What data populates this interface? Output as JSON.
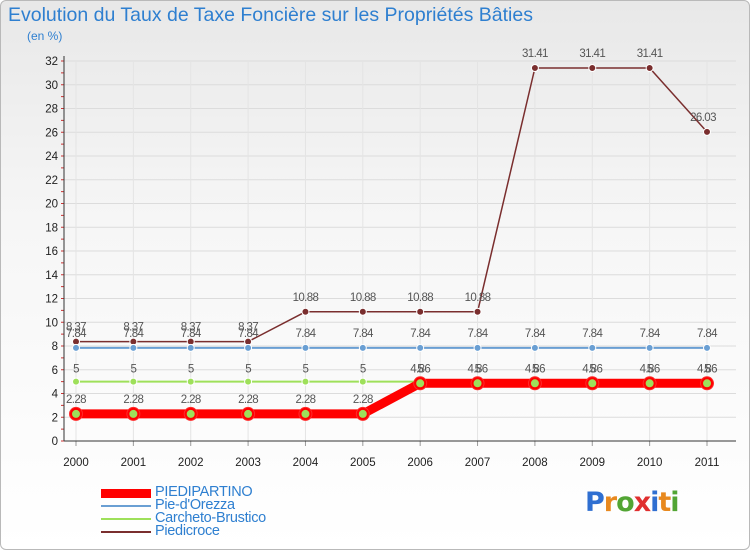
{
  "title": "Evolution du Taux de Taxe Foncière sur les Propriétés Bâties",
  "subtitle": "(en %)",
  "brand": {
    "letters": [
      "P",
      "r",
      "o",
      "x",
      "i",
      "t",
      "i"
    ],
    "colors": [
      "#2f6fd1",
      "#e8891f",
      "#52a534",
      "#e02f2f",
      "#2f6fd1",
      "#e8891f",
      "#52a534"
    ]
  },
  "chart_data": {
    "type": "line",
    "title": "Evolution du Taux de Taxe Foncière sur les Propriétés Bâties",
    "ylabel": "(en %)",
    "xlabel": "",
    "x": [
      "2000",
      "2001",
      "2002",
      "2003",
      "2004",
      "2005",
      "2006",
      "2007",
      "2008",
      "2009",
      "2010",
      "2011"
    ],
    "ylim": [
      0,
      32
    ],
    "yticks": [
      "0",
      "2",
      "4",
      "6",
      "8",
      "10",
      "12",
      "14",
      "16",
      "18",
      "20",
      "22",
      "24",
      "26",
      "28",
      "30",
      "32"
    ],
    "legend_position": "bottom-left",
    "series": [
      {
        "name": "PIEDIPARTINO",
        "color": "#ff0000",
        "values": [
          2.28,
          2.28,
          2.28,
          2.28,
          2.28,
          2.28,
          4.86,
          4.86,
          4.86,
          4.86,
          4.86,
          4.86
        ],
        "labels": [
          "2.28",
          "2.28",
          "2.28",
          "2.28",
          "2.28",
          "2.28",
          "4.86",
          "4.86",
          "4.86",
          "4.86",
          "4.86",
          "4.86"
        ]
      },
      {
        "name": "Pie-d'Orezza",
        "color": "#6a9fd3",
        "values": [
          7.84,
          7.84,
          7.84,
          7.84,
          7.84,
          7.84,
          7.84,
          7.84,
          7.84,
          7.84,
          7.84,
          7.84
        ],
        "labels": [
          "7.84",
          "7.84",
          "7.84",
          "7.84",
          "7.84",
          "7.84",
          "7.84",
          "7.84",
          "7.84",
          "7.84",
          "7.84",
          "7.84"
        ]
      },
      {
        "name": "Carcheto-Brustico",
        "color": "#9ee05a",
        "values": [
          5,
          5,
          5,
          5,
          5,
          5,
          5,
          5,
          5,
          5,
          5,
          5
        ],
        "labels": [
          "5",
          "5",
          "5",
          "5",
          "5",
          "5",
          "5",
          "5",
          "5",
          "5",
          "5",
          "5"
        ]
      },
      {
        "name": "Piedicroce",
        "color": "#7a2e2e",
        "values": [
          8.37,
          8.37,
          8.37,
          8.37,
          10.88,
          10.88,
          10.88,
          10.88,
          31.41,
          31.41,
          31.41,
          26.03
        ],
        "labels": [
          "8.37",
          "8.37",
          "8.37",
          "8.37",
          "10.88",
          "10.88",
          "10.88",
          "10.88",
          "31.41",
          "31.41",
          "31.41",
          "26.03"
        ]
      }
    ]
  }
}
